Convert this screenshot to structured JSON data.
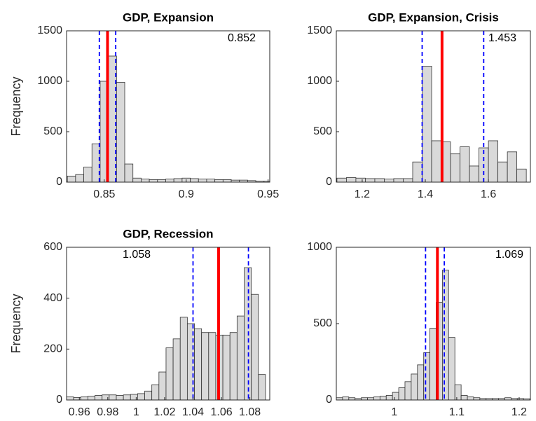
{
  "chart_data": [
    {
      "type": "histogram",
      "title": "GDP, Expansion",
      "ylabel": "Frequency",
      "bins": [
        0.8275,
        0.8325,
        0.8375,
        0.8425,
        0.8475,
        0.8525,
        0.8575,
        0.8625,
        0.8675,
        0.8725,
        0.8775,
        0.8825,
        0.8875,
        0.8925,
        0.8975,
        0.9025,
        0.9075,
        0.9125,
        0.9175,
        0.9225,
        0.9275,
        0.9325,
        0.9375,
        0.9425,
        0.9475,
        0.9525
      ],
      "values": [
        60,
        75,
        150,
        380,
        1000,
        1250,
        990,
        180,
        40,
        30,
        25,
        25,
        30,
        35,
        40,
        35,
        30,
        30,
        25,
        25,
        20,
        20,
        15,
        10,
        10
      ],
      "mean": 0.852,
      "interval": [
        0.847,
        0.857
      ],
      "xlim": [
        0.827,
        0.951
      ],
      "xticks": [
        0.85,
        0.9,
        0.95
      ],
      "ylim": [
        0,
        1500
      ],
      "yticks": [
        0,
        500,
        1000,
        1500
      ],
      "color": "#d9d9d9",
      "mean_color": "#ff0000",
      "interval_color": "#0000ff"
    },
    {
      "type": "histogram",
      "title": "GDP, Expansion, Crisis",
      "bins": [
        1.12,
        1.15,
        1.18,
        1.21,
        1.24,
        1.27,
        1.3,
        1.33,
        1.36,
        1.39,
        1.42,
        1.45,
        1.48,
        1.51,
        1.54,
        1.57,
        1.6,
        1.63,
        1.66,
        1.69,
        1.72
      ],
      "values": [
        40,
        45,
        40,
        35,
        35,
        30,
        35,
        35,
        200,
        1150,
        410,
        400,
        280,
        350,
        160,
        340,
        410,
        200,
        300,
        130
      ],
      "mean": 1.453,
      "interval": [
        1.39,
        1.585
      ],
      "xlim": [
        1.118,
        1.733
      ],
      "xticks": [
        1.2,
        1.4,
        1.6
      ],
      "ylim": [
        0,
        1500
      ],
      "yticks": [
        0,
        500,
        1000,
        1500
      ],
      "color": "#d9d9d9",
      "mean_color": "#ff0000",
      "interval_color": "#0000ff"
    },
    {
      "type": "histogram",
      "title": "GDP, Recession",
      "ylabel": "Frequency",
      "bins": [
        0.951,
        0.956,
        0.961,
        0.966,
        0.971,
        0.976,
        0.981,
        0.986,
        0.991,
        0.996,
        1.001,
        1.006,
        1.011,
        1.016,
        1.021,
        1.026,
        1.031,
        1.036,
        1.041,
        1.046,
        1.051,
        1.056,
        1.061,
        1.066,
        1.071,
        1.076,
        1.081,
        1.086,
        1.091
      ],
      "values": [
        12,
        10,
        12,
        15,
        18,
        20,
        20,
        18,
        20,
        22,
        25,
        35,
        60,
        110,
        205,
        240,
        325,
        300,
        280,
        265,
        265,
        255,
        255,
        265,
        330,
        520,
        415,
        100
      ],
      "mean": 1.058,
      "interval": [
        1.04,
        1.079
      ],
      "xlim": [
        0.951,
        1.094
      ],
      "xticks": [
        0.96,
        0.98,
        1,
        1.02,
        1.04,
        1.06,
        1.08
      ],
      "ylim": [
        0,
        600
      ],
      "yticks": [
        0,
        200,
        400,
        600
      ],
      "color": "#d9d9d9",
      "mean_color": "#ff0000",
      "interval_color": "#0000ff"
    },
    {
      "type": "histogram",
      "bins": [
        0.907,
        0.917,
        0.927,
        0.937,
        0.947,
        0.957,
        0.967,
        0.977,
        0.987,
        0.997,
        1.007,
        1.017,
        1.027,
        1.037,
        1.047,
        1.057,
        1.067,
        1.077,
        1.087,
        1.097,
        1.107,
        1.117,
        1.127,
        1.137,
        1.147,
        1.157,
        1.167,
        1.177,
        1.187,
        1.197,
        1.207,
        1.217
      ],
      "values": [
        15,
        20,
        15,
        10,
        15,
        15,
        20,
        25,
        30,
        50,
        80,
        120,
        170,
        230,
        310,
        470,
        640,
        850,
        410,
        100,
        30,
        20,
        15,
        10,
        10,
        10,
        10,
        15,
        10,
        10,
        8
      ],
      "mean": 1.069,
      "interval": [
        1.05,
        1.08
      ],
      "xlim": [
        0.907,
        1.218
      ],
      "xticks": [
        1,
        1.1,
        1.2
      ],
      "ylim": [
        0,
        1000
      ],
      "yticks": [
        0,
        500,
        1000
      ],
      "color": "#d9d9d9",
      "mean_color": "#ff0000",
      "interval_color": "#0000ff"
    }
  ]
}
